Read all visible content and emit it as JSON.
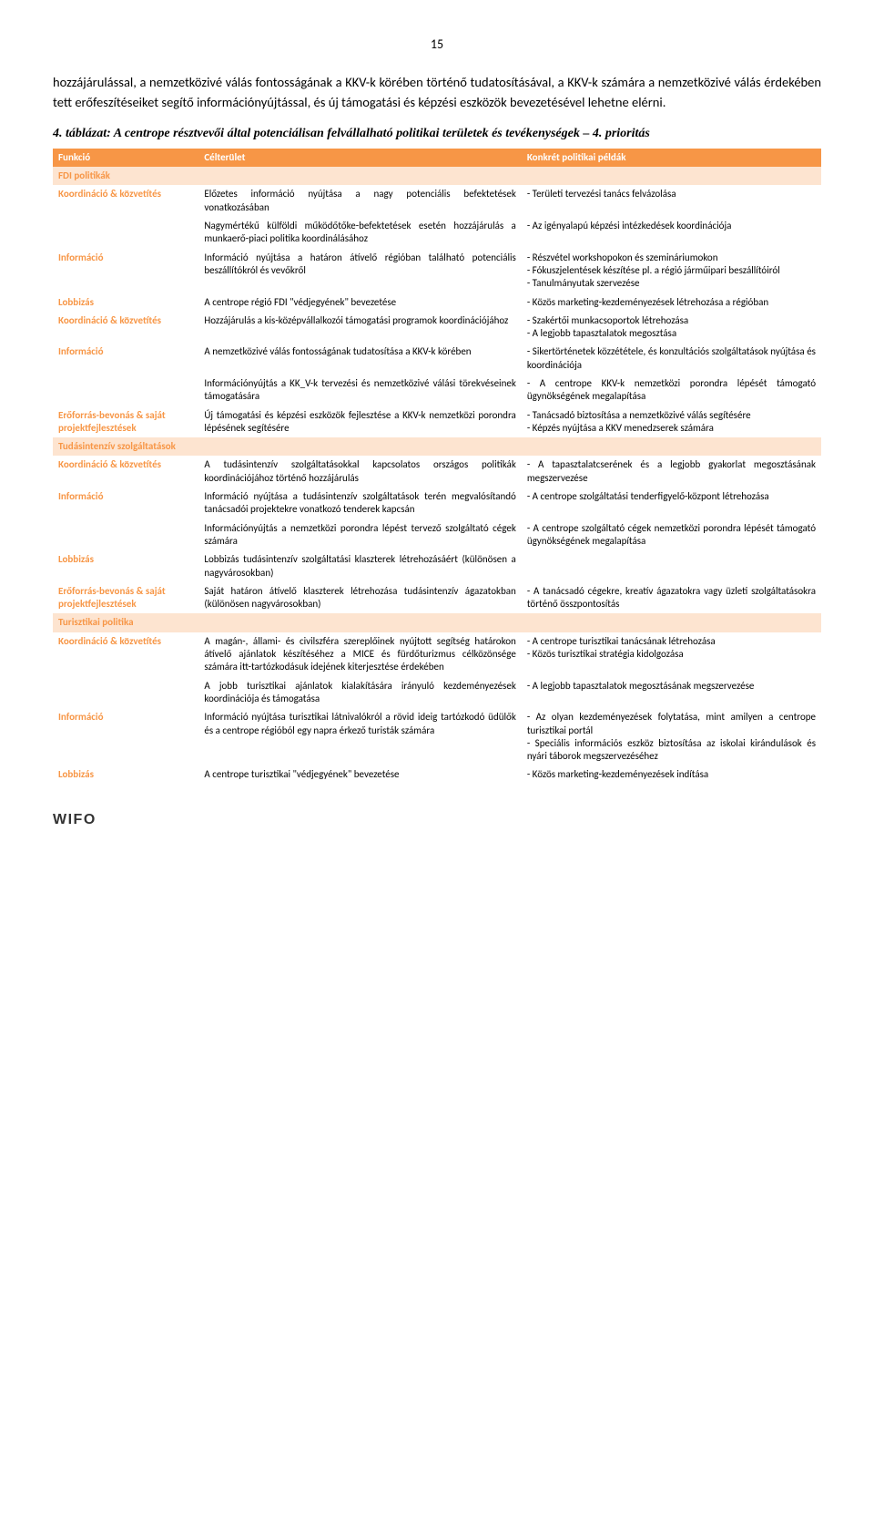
{
  "page_number": "15",
  "intro_paragraph": "hozzájárulással, a nemzetközivé válás fontosságának a KKV-k körében történő tudatosításával, a KKV-k számára a nemzetközivé válás érdekében tett erőfeszítéseiket segítő információnyújtással, és új támogatási és képzési eszközök bevezetésével lehetne elérni.",
  "table_caption": "4. táblázat: A centrope résztvevői által potenciálisan felvállalható politikai területek és tevékenységek – 4. prioritás",
  "columns": {
    "c1": "Funkció",
    "c2": "Célterület",
    "c3": "Konkrét politikai példák"
  },
  "sections": {
    "s1": "FDI politikák",
    "s2": "Tudásintenzív szolgáltatások",
    "s3": "Turisztikai politika"
  },
  "rows": {
    "r1": {
      "f": "Koordináció & közvetítés",
      "t": "Előzetes információ nyújtása a nagy potenciális befektetések vonatkozásában",
      "e": "- Területi tervezési tanács felvázolása"
    },
    "r2": {
      "f": "",
      "t": "Nagymértékű külföldi működőtőke-befektetések esetén hozzájárulás a munkaerő-piaci politika koordinálásához",
      "e": "- Az igényalapú képzési intézkedések koordinációja"
    },
    "r3": {
      "f": "Információ",
      "t": "Információ nyújtása a határon átívelő régióban található potenciális beszállítókról és vevőkről",
      "e": "- Részvétel workshopokon és szemináriumokon\n- Fókuszjelentések készítése pl. a régió járműipari beszállítóiról\n- Tanulmányutak szervezése"
    },
    "r4": {
      "f": "Lobbizás",
      "t": "A centrope régió FDI \"védjegyének\" bevezetése",
      "e": "- Közös marketing-kezdeményezések létrehozása a régióban"
    },
    "r5": {
      "f": "Koordináció & közvetítés",
      "t": "Hozzájárulás a kis-középvállalkozói támogatási programok koordinációjához",
      "e": "- Szakértői munkacsoportok létrehozása\n- A legjobb tapasztalatok megosztása"
    },
    "r6": {
      "f": "Információ",
      "t": "A nemzetközivé válás fontosságának tudatosítása a KKV-k körében",
      "e": "- Sikertörténetek közzététele, és konzultációs szolgáltatások nyújtása és koordinációja"
    },
    "r7": {
      "f": "",
      "t": "Információnyújtás a KK_V-k tervezési és nemzetközivé válási törekvéseinek támogatására",
      "e": "- A centrope KKV-k nemzetközi porondra lépését támogató ügynökségének megalapítása"
    },
    "r8": {
      "f": "Erőforrás-bevonás & saját projektfejlesztések",
      "t": "Új támogatási és képzési eszközök fejlesztése a KKV-k nemzetközi porondra lépésének segítésére",
      "e": "- Tanácsadó biztosítása a nemzetközivé válás segítésére\n- Képzés nyújtása a KKV menedzserek számára"
    },
    "r9": {
      "f": "Koordináció & közvetítés",
      "t": "A tudásintenzív szolgáltatásokkal kapcsolatos országos politikák koordinációjához történő hozzájárulás",
      "e": "- A tapasztalatcserének és a legjobb gyakorlat megosztásának megszervezése"
    },
    "r10": {
      "f": "Információ",
      "t": "Információ nyújtása a tudásintenzív szolgáltatások terén megvalósítandó tanácsadói projektekre vonatkozó tenderek kapcsán",
      "e": "- A centrope szolgáltatási tenderfigyelő-központ létrehozása"
    },
    "r11": {
      "f": "",
      "t": "Információnyújtás a nemzetközi porondra lépést tervező szolgáltató cégek számára",
      "e": "- A centrope szolgáltató cégek nemzetközi porondra lépését támogató ügynökségének megalapítása"
    },
    "r12": {
      "f": "Lobbizás",
      "t": "Lobbizás tudásintenzív szolgáltatási klaszterek létrehozásáért (különösen a nagyvárosokban)",
      "e": ""
    },
    "r13": {
      "f": "Erőforrás-bevonás & saját projektfejlesztések",
      "t": "Saját határon átívelő klaszterek létrehozása tudásintenzív ágazatokban (különösen nagyvárosokban)",
      "e": "- A tanácsadó cégekre, kreatív ágazatokra vagy üzleti szolgáltatásokra történő összpontosítás"
    },
    "r14": {
      "f": "Koordináció & közvetítés",
      "t": "A magán-, állami- és civilszféra szereplőinek nyújtott segítség határokon átívelő ajánlatok készítéséhez a MICE és fürdőturizmus célközönsége számára itt-tartózkodásuk idejének kiterjesztése érdekében",
      "e": "- A centrope turisztikai tanácsának létrehozása\n- Közös turisztikai stratégia kidolgozása"
    },
    "r15": {
      "f": "",
      "t": "A jobb turisztikai ajánlatok kialakítására irányuló kezdeményezések koordinációja és támogatása",
      "e": "- A legjobb tapasztalatok megosztásának megszervezése"
    },
    "r16": {
      "f": "Információ",
      "t": "Információ nyújtása turisztikai látnivalókról a rövid ideig tartózkodó üdülők és a centrope régióból egy napra érkező turisták számára",
      "e": "- Az olyan kezdeményezések folytatása, mint amilyen a centrope turisztikai portál\n- Speciális információs eszköz biztosítása az iskolai kirándulások és nyári táborok megszervezéséhez"
    },
    "r17": {
      "f": "Lobbizás",
      "t": "A centrope turisztikai \"védjegyének\" bevezetése",
      "e": "- Közös marketing-kezdeményezések indítása"
    }
  },
  "footer_logo": "WIFO"
}
